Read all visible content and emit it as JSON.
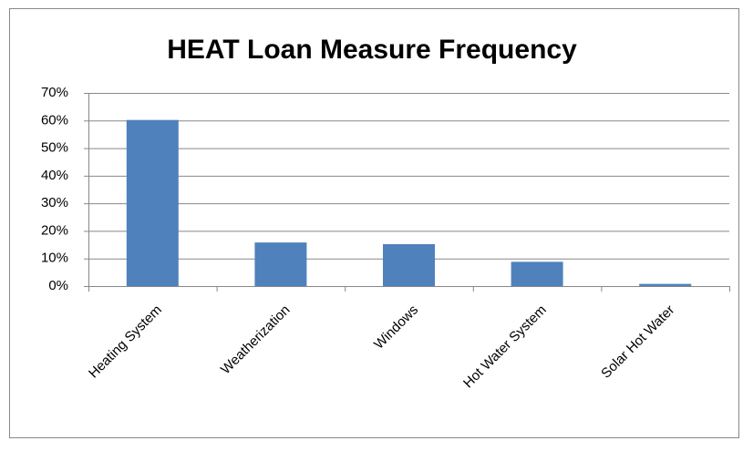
{
  "chart_data": {
    "type": "bar",
    "title": "HEAT Loan Measure Frequency",
    "categories": [
      "Heating System",
      "Weatherization",
      "Windows",
      "Hot Water System",
      "Solar Hot Water"
    ],
    "values": [
      60.2,
      15.8,
      15.2,
      8.8,
      0.8
    ],
    "color": "#4f81bd",
    "ylim": [
      0,
      70
    ],
    "yticks": [
      {
        "value": 0,
        "label": "0%"
      },
      {
        "value": 10,
        "label": "10%"
      },
      {
        "value": 20,
        "label": "20%"
      },
      {
        "value": 30,
        "label": "30%"
      },
      {
        "value": 40,
        "label": "40%"
      },
      {
        "value": 50,
        "label": "50%"
      },
      {
        "value": 60,
        "label": "60%"
      },
      {
        "value": 70,
        "label": "70%"
      }
    ],
    "grid": true
  }
}
